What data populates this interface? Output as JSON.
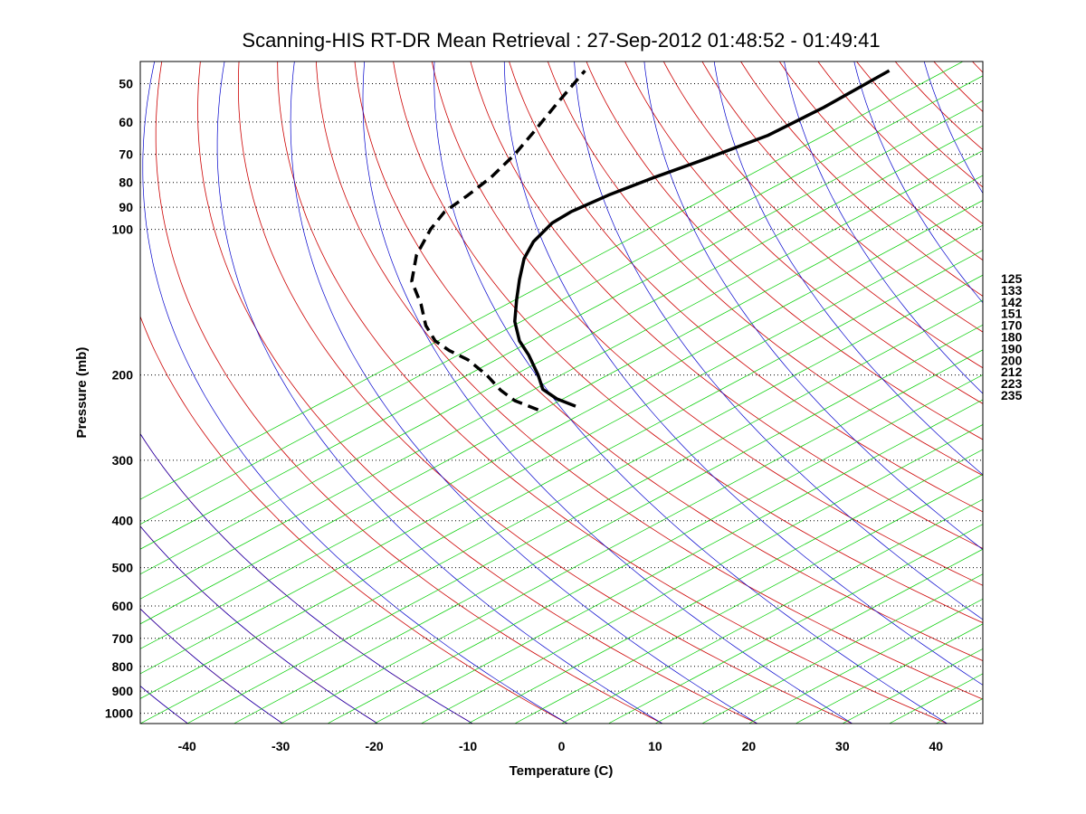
{
  "chart_data": {
    "type": "line",
    "title": "Scanning-HIS RT-DR Mean Retrieval : 27-Sep-2012 01:48:52 - 01:49:41",
    "xlabel": "Temperature (C)",
    "ylabel": "Pressure (mb)",
    "xlim": [
      -45,
      45
    ],
    "ylim": [
      1050,
      45
    ],
    "y_scale": "log",
    "x_ticks": [
      -40,
      -30,
      -20,
      -10,
      0,
      10,
      20,
      30,
      40
    ],
    "y_ticks": [
      50,
      60,
      70,
      80,
      90,
      100,
      200,
      300,
      400,
      500,
      600,
      700,
      800,
      900,
      1000
    ],
    "grid": "horizontal dotted at pressure ticks",
    "side_labels": [
      "125",
      "133",
      "142",
      "151",
      "170",
      "180",
      "190",
      "200",
      "212",
      "223",
      "235"
    ],
    "series": [
      {
        "name": "temperature",
        "style": "solid",
        "color": "#000000",
        "points": [
          [
            1.5,
            232
          ],
          [
            -0.5,
            224
          ],
          [
            -2.0,
            214
          ],
          [
            -2.5,
            200
          ],
          [
            -3.5,
            182
          ],
          [
            -4.5,
            170
          ],
          [
            -5.0,
            155
          ],
          [
            -4.8,
            140
          ],
          [
            -4.5,
            127
          ],
          [
            -4.0,
            115
          ],
          [
            -3.0,
            106
          ],
          [
            -1.0,
            97
          ],
          [
            1.0,
            92
          ],
          [
            5.0,
            85
          ],
          [
            10.0,
            78
          ],
          [
            15.0,
            72
          ],
          [
            22.0,
            64
          ],
          [
            28.0,
            56
          ],
          [
            35.0,
            47
          ]
        ]
      },
      {
        "name": "dewpoint",
        "style": "dashed",
        "color": "#000000",
        "points": [
          [
            -2.5,
            236
          ],
          [
            -5.0,
            226
          ],
          [
            -6.5,
            215
          ],
          [
            -8.0,
            200
          ],
          [
            -10.0,
            186
          ],
          [
            -12.0,
            178
          ],
          [
            -13.5,
            170
          ],
          [
            -14.5,
            158
          ],
          [
            -15.0,
            143
          ],
          [
            -16.0,
            128
          ],
          [
            -15.5,
            113
          ],
          [
            -14.0,
            100
          ],
          [
            -12.5,
            92
          ],
          [
            -10.0,
            85
          ],
          [
            -7.5,
            78
          ],
          [
            -5.0,
            70
          ],
          [
            -3.0,
            63
          ],
          [
            -0.5,
            55
          ],
          [
            2.5,
            47
          ]
        ]
      }
    ],
    "background_lines": {
      "dry_adiabats_color": "#cc0000",
      "moist_adiabats_color": "#0000cc",
      "mixing_ratio_color": "#00cc00"
    }
  }
}
